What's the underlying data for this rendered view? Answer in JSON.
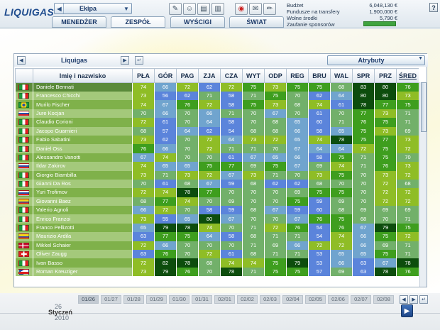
{
  "app": {
    "logo": "LIQUIGAS"
  },
  "team_selector": {
    "value": "Ekipa",
    "prev_icon": "arrow-left",
    "drop_icon": "triangle-down"
  },
  "nav": {
    "manager": "MENEDŻER",
    "team": "ZESPÓŁ",
    "races": "WYŚCIGI",
    "world": "ŚWIAT"
  },
  "toolbar": [
    {
      "icon": "notepad"
    },
    {
      "icon": "person"
    },
    {
      "icon": "cards"
    },
    {
      "icon": "clipboard"
    },
    {
      "icon": "alert"
    },
    {
      "icon": "stamp"
    },
    {
      "icon": "pencil"
    }
  ],
  "finance": {
    "budget_label": "Budżet",
    "budget_value": "6,048,130 €",
    "transfer_label": "Fundusze na transfery",
    "transfer_value": "1,900,000 €",
    "free_label": "Wolne środki",
    "free_value": "5,790 €",
    "sponsor_label": "Zaufanie sponsorów",
    "sponsor_confidence": 1.0,
    "sponsor_color": "#3fa33f"
  },
  "help": {
    "label": "?"
  },
  "panel": {
    "team_name": "Liquigas",
    "attr_select": "Atrybuty",
    "columns": [
      "Imię i nazwisko",
      "PŁA",
      "GÓR",
      "PAG",
      "ZJA",
      "CZA",
      "WYT",
      "ODP",
      "REG",
      "BRU",
      "WAL",
      "SPR",
      "PRZ",
      "ŚRED"
    ],
    "sorted_column": "ŚRED"
  },
  "colors": {
    "v_low": "#5b84db",
    "v_mid_low": "#70a4ce",
    "v_mid": "#72b06a",
    "v_good": "#8fbd26",
    "v_high": "#3e9e1e",
    "v_top": "#0d4d0d"
  },
  "riders": [
    {
      "name": "Daniele Bennati",
      "flag": "it",
      "stats": [
        "74",
        "66",
        "72",
        "62",
        "72",
        "75",
        "73",
        "75",
        "75",
        "68",
        "83",
        "80",
        "76"
      ]
    },
    {
      "name": "Francesco Chicchi",
      "flag": "it",
      "stats": [
        "73",
        "56",
        "62",
        "71",
        "58",
        "71",
        "75",
        "70",
        "62",
        "64",
        "80",
        "80",
        "73"
      ]
    },
    {
      "name": "Murilo Fischer",
      "flag": "br",
      "stats": [
        "74",
        "67",
        "76",
        "72",
        "58",
        "75",
        "73",
        "68",
        "74",
        "61",
        "78",
        "77",
        "75"
      ]
    },
    {
      "name": "Jure Kocjan",
      "flag": "si",
      "stats": [
        "70",
        "66",
        "70",
        "66",
        "71",
        "70",
        "67",
        "70",
        "61",
        "70",
        "77",
        "73",
        "71"
      ]
    },
    {
      "name": "Claudio Corioni",
      "flag": "it",
      "stats": [
        "72",
        "61",
        "70",
        "64",
        "58",
        "70",
        "68",
        "65",
        "60",
        "71",
        "76",
        "75",
        "71"
      ]
    },
    {
      "name": "Jacopo Guarnieri",
      "flag": "it",
      "stats": [
        "68",
        "57",
        "64",
        "62",
        "54",
        "68",
        "68",
        "66",
        "58",
        "65",
        "75",
        "73",
        "69"
      ]
    },
    {
      "name": "Fabio Sabatini",
      "flag": "it",
      "stats": [
        "73",
        "62",
        "70",
        "72",
        "64",
        "73",
        "72",
        "65",
        "74",
        "78",
        "75",
        "77",
        "73"
      ]
    },
    {
      "name": "Daniel Oss",
      "flag": "it",
      "stats": [
        "76",
        "66",
        "70",
        "72",
        "71",
        "71",
        "70",
        "67",
        "64",
        "64",
        "72",
        "75",
        "72"
      ]
    },
    {
      "name": "Alessandro Vanotti",
      "flag": "it",
      "stats": [
        "67",
        "74",
        "70",
        "70",
        "61",
        "67",
        "65",
        "66",
        "58",
        "75",
        "71",
        "75",
        "70"
      ]
    },
    {
      "name": "Ildar Zakirov",
      "flag": "ru",
      "stats": [
        "74",
        "65",
        "65",
        "75",
        "77",
        "69",
        "75",
        "67",
        "69",
        "74",
        "71",
        "76",
        "73"
      ]
    },
    {
      "name": "Giorgio Biambilla",
      "flag": "it",
      "stats": [
        "73",
        "71",
        "73",
        "72",
        "67",
        "73",
        "71",
        "70",
        "73",
        "75",
        "70",
        "73",
        "72"
      ]
    },
    {
      "name": "Gianni Da Ros",
      "flag": "it",
      "stats": [
        "70",
        "61",
        "68",
        "67",
        "59",
        "68",
        "62",
        "62",
        "68",
        "70",
        "70",
        "72",
        "68"
      ]
    },
    {
      "name": "Yuri Trofimov",
      "flag": "ru",
      "stats": [
        "72",
        "74",
        "78",
        "77",
        "70",
        "70",
        "70",
        "69",
        "75",
        "75",
        "70",
        "72",
        "72"
      ]
    },
    {
      "name": "Giovanni Baez",
      "flag": "co",
      "stats": [
        "68",
        "77",
        "74",
        "70",
        "69",
        "70",
        "70",
        "75",
        "59",
        "69",
        "70",
        "72",
        "72"
      ]
    },
    {
      "name": "Valerio Agnoli",
      "flag": "it",
      "stats": [
        "66",
        "72",
        "70",
        "58",
        "59",
        "68",
        "67",
        "59",
        "60",
        "68",
        "69",
        "69",
        "69"
      ]
    },
    {
      "name": "Enrico Franzoi",
      "flag": "it",
      "stats": [
        "73",
        "55",
        "65",
        "80",
        "67",
        "70",
        "70",
        "67",
        "76",
        "75",
        "68",
        "70",
        "71"
      ]
    },
    {
      "name": "Franco Pellizotti",
      "flag": "it",
      "stats": [
        "65",
        "79",
        "78",
        "74",
        "70",
        "71",
        "72",
        "76",
        "54",
        "76",
        "67",
        "79",
        "75"
      ]
    },
    {
      "name": "Maurizio Ardila",
      "flag": "co",
      "stats": [
        "63",
        "77",
        "75",
        "64",
        "58",
        "68",
        "71",
        "71",
        "54",
        "74",
        "66",
        "75",
        "72"
      ]
    },
    {
      "name": "Mikkel Schaier",
      "flag": "dk",
      "stats": [
        "72",
        "66",
        "70",
        "70",
        "70",
        "71",
        "69",
        "66",
        "72",
        "72",
        "66",
        "69",
        "71"
      ]
    },
    {
      "name": "Oliver Zaugg",
      "flag": "ch",
      "stats": [
        "63",
        "76",
        "70",
        "72",
        "61",
        "68",
        "71",
        "71",
        "53",
        "65",
        "65",
        "75",
        "71"
      ]
    },
    {
      "name": "Ivan Basso",
      "flag": "it",
      "stats": [
        "72",
        "82",
        "78",
        "68",
        "74",
        "74",
        "75",
        "79",
        "53",
        "66",
        "63",
        "67",
        "78"
      ]
    },
    {
      "name": "Roman Kreuziger",
      "flag": "cz",
      "stats": [
        "73",
        "79",
        "76",
        "70",
        "78",
        "71",
        "75",
        "75",
        "57",
        "69",
        "63",
        "78",
        "76"
      ]
    }
  ],
  "date": {
    "day": "26",
    "month": "Styczeń",
    "year": "2010",
    "strip": [
      "01/26",
      "01/27",
      "01/28",
      "01/29",
      "01/30",
      "01/31",
      "02/01",
      "02/02",
      "02/03",
      "02/04",
      "02/05",
      "02/06",
      "02/07",
      "02/08"
    ]
  }
}
